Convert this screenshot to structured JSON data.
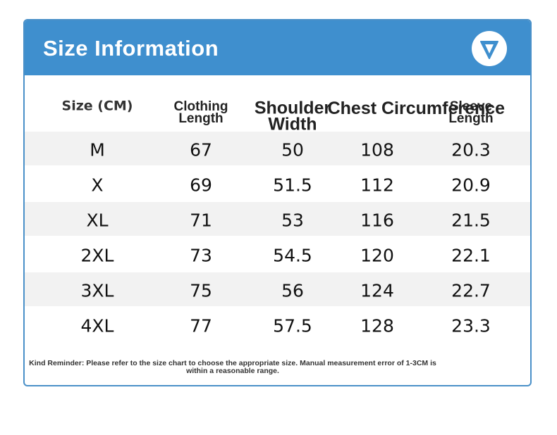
{
  "header": {
    "title": "Size Information"
  },
  "table": {
    "columns": [
      "Size (CM)",
      "Clothing Length",
      "Shoulder Width",
      "Chest Circumference",
      "Sleeve Length"
    ],
    "rows": [
      [
        "M",
        67,
        50,
        108,
        20.3
      ],
      [
        "X",
        69,
        51.5,
        112,
        20.9
      ],
      [
        "XL",
        71,
        53,
        116,
        21.5
      ],
      [
        "2XL",
        73,
        54.5,
        120,
        22.1
      ],
      [
        "3XL",
        75,
        56,
        124,
        22.7
      ],
      [
        "4XL",
        77,
        57.5,
        128,
        23.3
      ]
    ]
  },
  "note": "Kind Reminder: Please refer to the size chart to choose the appropriate size. Manual measurement error of 1-3CM is within a reasonable range."
}
